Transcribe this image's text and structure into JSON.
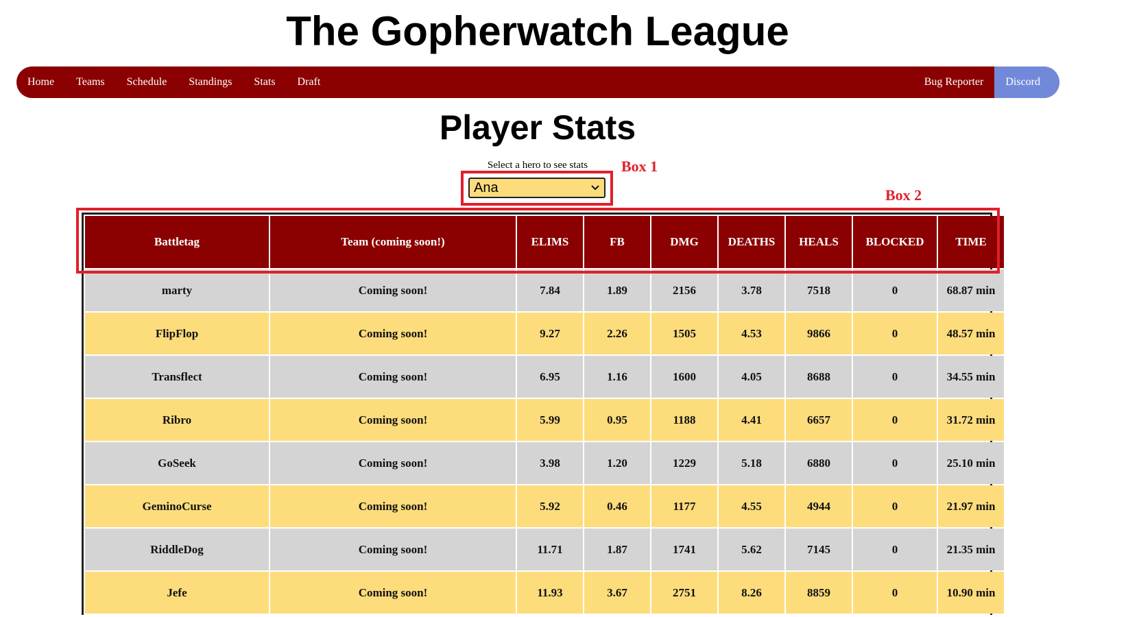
{
  "site": {
    "title": "The Gopherwatch League"
  },
  "nav": {
    "left": [
      "Home",
      "Teams",
      "Schedule",
      "Standings",
      "Stats",
      "Draft"
    ],
    "bug_reporter": "Bug Reporter",
    "discord": "Discord",
    "colors": {
      "bar": "#8b0000",
      "discord": "#7289da"
    }
  },
  "page": {
    "title": "Player Stats"
  },
  "hero_select": {
    "label": "Select a hero to see stats",
    "value": "Ana"
  },
  "annotations": {
    "box1": "Box 1",
    "box2": "Box 2"
  },
  "table": {
    "headers": [
      "Battletag",
      "Team (coming soon!)",
      "ELIMS",
      "FB",
      "DMG",
      "DEATHS",
      "HEALS",
      "BLOCKED",
      "TIME"
    ],
    "rows": [
      [
        "marty",
        "Coming soon!",
        "7.84",
        "1.89",
        "2156",
        "3.78",
        "7518",
        "0",
        "68.87 min"
      ],
      [
        "FlipFlop",
        "Coming soon!",
        "9.27",
        "2.26",
        "1505",
        "4.53",
        "9866",
        "0",
        "48.57 min"
      ],
      [
        "Transflect",
        "Coming soon!",
        "6.95",
        "1.16",
        "1600",
        "4.05",
        "8688",
        "0",
        "34.55 min"
      ],
      [
        "Ribro",
        "Coming soon!",
        "5.99",
        "0.95",
        "1188",
        "4.41",
        "6657",
        "0",
        "31.72 min"
      ],
      [
        "GoSeek",
        "Coming soon!",
        "3.98",
        "1.20",
        "1229",
        "5.18",
        "6880",
        "0",
        "25.10 min"
      ],
      [
        "GeminoCurse",
        "Coming soon!",
        "5.92",
        "0.46",
        "1177",
        "4.55",
        "4944",
        "0",
        "21.97 min"
      ],
      [
        "RiddleDog",
        "Coming soon!",
        "11.71",
        "1.87",
        "1741",
        "5.62",
        "7145",
        "0",
        "21.35 min"
      ],
      [
        "Jefe",
        "Coming soon!",
        "11.93",
        "3.67",
        "2751",
        "8.26",
        "8859",
        "0",
        "10.90 min"
      ]
    ],
    "colors": {
      "header": "#8b0000",
      "row_gray": "#d4d4d4",
      "row_yellow": "#fddc7c"
    }
  }
}
